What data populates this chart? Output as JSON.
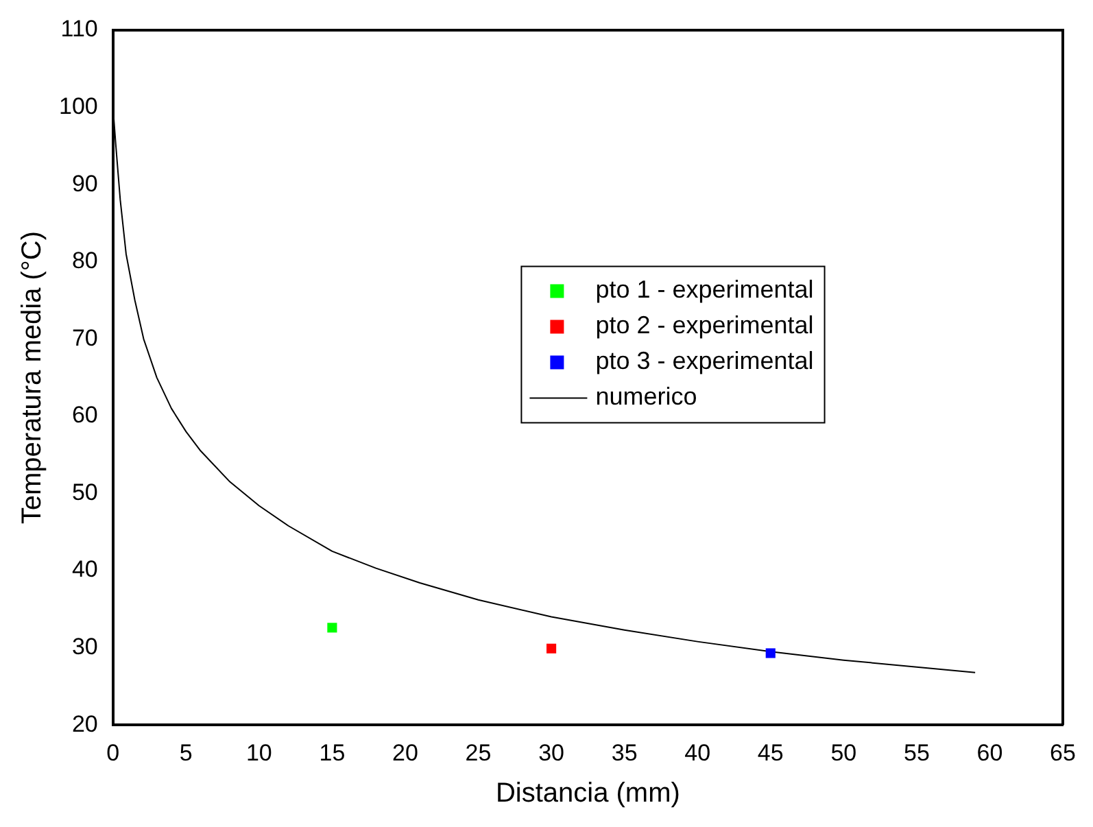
{
  "chart_data": {
    "type": "scatter",
    "xlabel": "Distancia (mm)",
    "ylabel": "Temperatura media (°C)",
    "xlim": [
      0,
      65
    ],
    "xticks": [
      0,
      5,
      10,
      15,
      20,
      25,
      30,
      35,
      40,
      45,
      50,
      55,
      60,
      65
    ],
    "ylim": [
      20,
      110
    ],
    "yticks": [
      20,
      30,
      40,
      50,
      60,
      70,
      80,
      90,
      100,
      110
    ],
    "grid": false,
    "legend": "right",
    "marker": "square",
    "series": [
      {
        "name": "pto 1 - experimental",
        "color": "#00ff00",
        "x": [
          15
        ],
        "values": [
          32.6
        ]
      },
      {
        "name": "pto 2 - experimental",
        "color": "#ff0000",
        "x": [
          30
        ],
        "values": [
          29.9
        ]
      },
      {
        "name": "pto 3 - experimental",
        "color": "#0000ff",
        "x": [
          45
        ],
        "values": [
          29.3
        ]
      },
      {
        "name": "numerico",
        "type": "line",
        "color": "#000000",
        "marker": "none",
        "line_style": "solid",
        "x": [
          0,
          0.2,
          0.5,
          0.9,
          1.5,
          2.1,
          3,
          4,
          5,
          6,
          8,
          10,
          12,
          15,
          18,
          21,
          25,
          30,
          35,
          40,
          45,
          50,
          55,
          59
        ],
        "values": [
          100,
          95,
          88,
          81,
          75,
          70,
          65,
          61,
          58,
          55.5,
          51.5,
          48.4,
          45.8,
          42.5,
          40.3,
          38.4,
          36.2,
          34,
          32.3,
          30.8,
          29.5,
          28.4,
          27.5,
          26.8
        ]
      }
    ]
  }
}
